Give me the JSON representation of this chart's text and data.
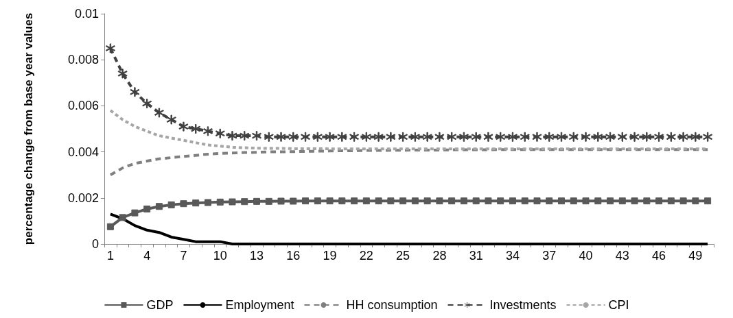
{
  "chart_data": {
    "type": "line",
    "ylabel": "percentage change from base year values",
    "categories": [
      "1",
      null,
      null,
      "4",
      null,
      null,
      "7",
      null,
      null,
      "10",
      null,
      null,
      "13",
      null,
      null,
      "16",
      null,
      null,
      "19",
      null,
      null,
      "22",
      null,
      null,
      "25",
      null,
      null,
      "28",
      null,
      null,
      "31",
      null,
      null,
      "34",
      null,
      null,
      "37",
      null,
      null,
      "40",
      null,
      null,
      "43",
      null,
      null,
      "46",
      null,
      null,
      "49",
      null
    ],
    "series": [
      {
        "name": "GDP",
        "color": "#595959",
        "marker": "square",
        "line_style": "solid",
        "values": [
          0.00075,
          0.00115,
          0.00135,
          0.00152,
          0.00163,
          0.0017,
          0.00175,
          0.00178,
          0.0018,
          0.00182,
          0.00183,
          0.00184,
          0.00185,
          0.00185,
          0.00186,
          0.00186,
          0.00187,
          0.00187,
          0.00187,
          0.00187,
          0.00187,
          0.00187,
          0.00187,
          0.00187,
          0.00187,
          0.00187,
          0.00187,
          0.00187,
          0.00187,
          0.00187,
          0.00187,
          0.00187,
          0.00187,
          0.00187,
          0.00187,
          0.00187,
          0.00187,
          0.00187,
          0.00187,
          0.00187,
          0.00187,
          0.00187,
          0.00187,
          0.00187,
          0.00187,
          0.00187,
          0.00187,
          0.00187,
          0.00187,
          0.00187
        ]
      },
      {
        "name": "Employment",
        "color": "#000000",
        "marker": "none",
        "line_style": "solid",
        "values": [
          0.0013,
          0.0011,
          0.0008,
          0.0006,
          0.0005,
          0.0003,
          0.0002,
          0.0001,
          0.0001,
          0.0001,
          0,
          0,
          0,
          0,
          0,
          0,
          0,
          0,
          0,
          0,
          0,
          0,
          0,
          0,
          0,
          0,
          0,
          0,
          0,
          0,
          0,
          0,
          0,
          0,
          0,
          0,
          0,
          0,
          0,
          0,
          0,
          0,
          0,
          0,
          0,
          0,
          0,
          0,
          0,
          0
        ]
      },
      {
        "name": "HH consumption",
        "color": "#7f7f7f",
        "marker": "none",
        "line_style": "dashed",
        "values": [
          0.003,
          0.0033,
          0.0035,
          0.0036,
          0.0037,
          0.00375,
          0.0038,
          0.00385,
          0.0039,
          0.00393,
          0.00395,
          0.00397,
          0.00398,
          0.004,
          0.004,
          0.00401,
          0.00402,
          0.00403,
          0.00404,
          0.00405,
          0.00405,
          0.00406,
          0.00406,
          0.00407,
          0.00407,
          0.00408,
          0.00408,
          0.00408,
          0.00409,
          0.00409,
          0.00409,
          0.00409,
          0.0041,
          0.0041,
          0.0041,
          0.0041,
          0.0041,
          0.0041,
          0.0041,
          0.0041,
          0.0041,
          0.0041,
          0.0041,
          0.0041,
          0.0041,
          0.0041,
          0.0041,
          0.0041,
          0.0041,
          0.0041
        ]
      },
      {
        "name": "Investments",
        "color": "#404040",
        "marker": "star",
        "line_style": "dashed",
        "values": [
          0.0085,
          0.0074,
          0.0066,
          0.0061,
          0.0057,
          0.0054,
          0.0051,
          0.005,
          0.0049,
          0.0048,
          0.0047,
          0.0047,
          0.0047,
          0.00465,
          0.00465,
          0.00465,
          0.00465,
          0.00465,
          0.00465,
          0.00465,
          0.00465,
          0.00465,
          0.00465,
          0.00465,
          0.00465,
          0.00465,
          0.00465,
          0.00465,
          0.00465,
          0.00465,
          0.00465,
          0.00465,
          0.00465,
          0.00465,
          0.00465,
          0.00465,
          0.00465,
          0.00465,
          0.00465,
          0.00465,
          0.00465,
          0.00465,
          0.00465,
          0.00465,
          0.00465,
          0.00465,
          0.00465,
          0.00465,
          0.00465,
          0.00465
        ]
      },
      {
        "name": "CPI",
        "color": "#a6a6a6",
        "marker": "none",
        "line_style": "dotted",
        "values": [
          0.0058,
          0.0054,
          0.0051,
          0.0049,
          0.0047,
          0.0046,
          0.0045,
          0.0044,
          0.0043,
          0.00425,
          0.0042,
          0.00418,
          0.00416,
          0.00415,
          0.00415,
          0.00414,
          0.00414,
          0.00414,
          0.00413,
          0.00413,
          0.00413,
          0.00413,
          0.00413,
          0.00413,
          0.00413,
          0.00413,
          0.00413,
          0.00413,
          0.00413,
          0.00413,
          0.00413,
          0.00413,
          0.00413,
          0.00413,
          0.00413,
          0.00413,
          0.00413,
          0.00413,
          0.00413,
          0.00413,
          0.00413,
          0.00413,
          0.00413,
          0.00413,
          0.00413,
          0.00413,
          0.00413,
          0.00413,
          0.00413,
          0.00413
        ]
      }
    ],
    "ylim": [
      0,
      0.01
    ],
    "yticks": [
      0,
      0.002,
      0.004,
      0.006,
      0.008,
      0.01
    ],
    "grid": false,
    "legend": "bottom"
  }
}
